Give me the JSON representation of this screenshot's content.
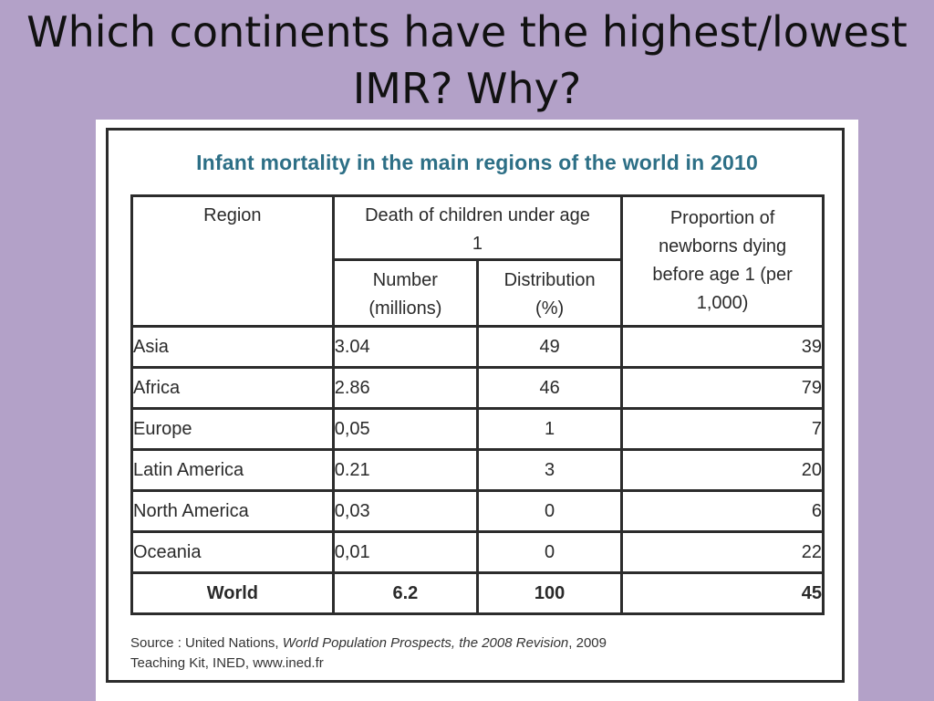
{
  "slide": {
    "title_line1": "Which continents have the highest/lowest",
    "title_line2": "IMR?  Why?"
  },
  "table": {
    "title": "Infant mortality in the main regions of the world in 2010",
    "headers": {
      "region": "Region",
      "deaths_group": "Death of children under age 1",
      "number": "Number (millions)",
      "distribution": "Distribution (%)",
      "proportion": "Proportion of newborns dying before age 1 (per 1,000)"
    },
    "rows": [
      {
        "region": "Asia",
        "number": "3.04",
        "distribution": "49",
        "proportion": "39"
      },
      {
        "region": "Africa",
        "number": "2.86",
        "distribution": "46",
        "proportion": "79"
      },
      {
        "region": "Europe",
        "number": "0,05",
        "distribution": "1",
        "proportion": "7"
      },
      {
        "region": "Latin America",
        "number": "0.21",
        "distribution": "3",
        "proportion": "20"
      },
      {
        "region": "North America",
        "number": "0,03",
        "distribution": "0",
        "proportion": "6"
      },
      {
        "region": "Oceania",
        "number": "0,01",
        "distribution": "0",
        "proportion": "22"
      },
      {
        "region": "World",
        "number": "6.2",
        "distribution": "100",
        "proportion": "45"
      }
    ],
    "source": {
      "prefix": "Source : United Nations, ",
      "publication": "World Population Prospects, the 2008 Revision",
      "suffix": ", 2009",
      "line2": "Teaching Kit, INED, www.ined.fr"
    },
    "colors": {
      "title": "#2d6f86",
      "background": "#b3a1c8",
      "border": "#2c2c2c"
    }
  }
}
